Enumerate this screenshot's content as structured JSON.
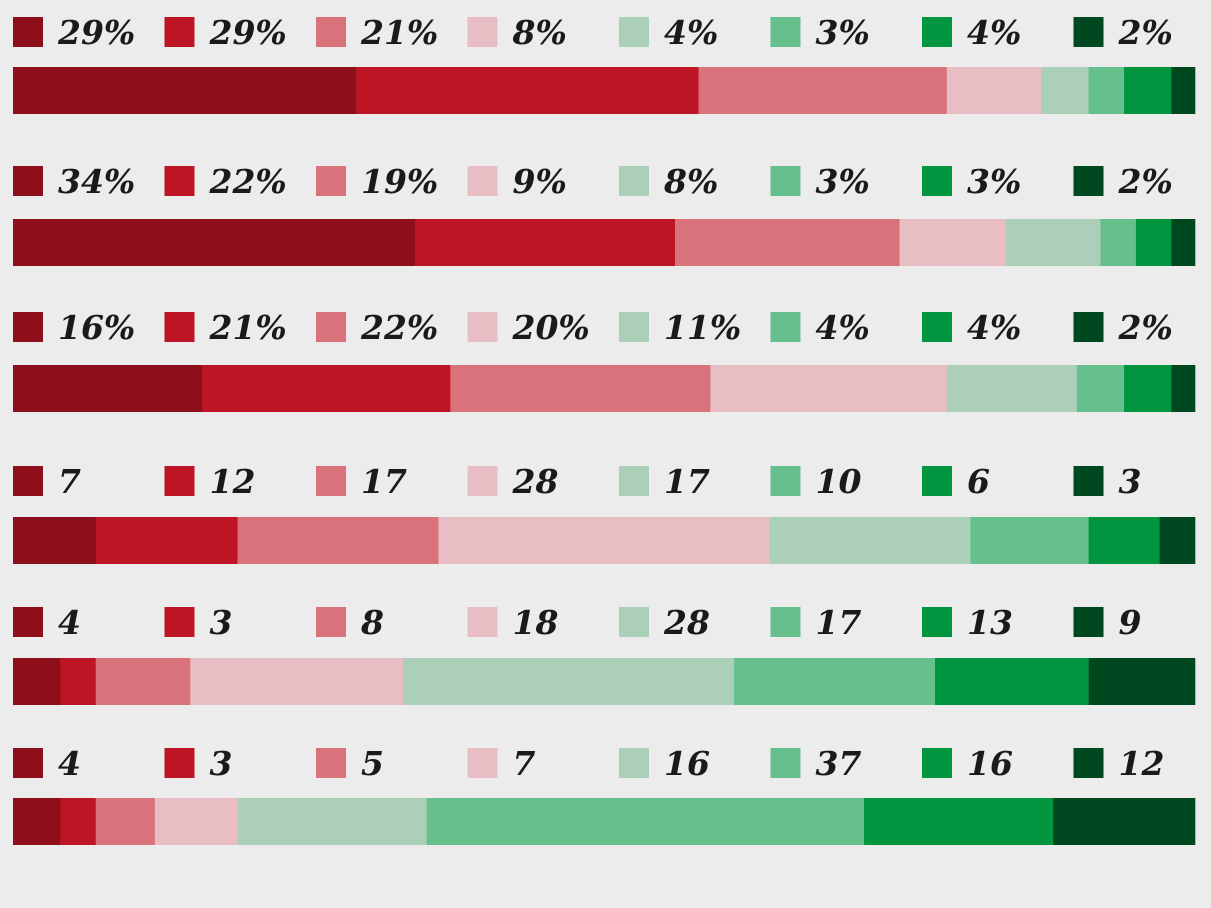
{
  "palette": [
    "#8c0f1b",
    "#bd1523",
    "#d9727a",
    "#e8bdc3",
    "#abcfb9",
    "#66c08e",
    "#00963f",
    "#004920"
  ],
  "chart_data": {
    "type": "bar",
    "orientation": "horizontal",
    "stacked": true,
    "normalized": true,
    "title": "",
    "legend_placement": "above each bar",
    "grid": false,
    "rows": [
      {
        "values": [
          29,
          29,
          21,
          8,
          4,
          3,
          4,
          2
        ],
        "labels": [
          "29%",
          "29%",
          "21%",
          "8%",
          "4%",
          "3%",
          "4%",
          "2%"
        ]
      },
      {
        "values": [
          34,
          22,
          19,
          9,
          8,
          3,
          3,
          2
        ],
        "labels": [
          "34%",
          "22%",
          "19%",
          "9%",
          "8%",
          "3%",
          "3%",
          "2%"
        ]
      },
      {
        "values": [
          16,
          21,
          22,
          20,
          11,
          4,
          4,
          2
        ],
        "labels": [
          "16%",
          "21%",
          "22%",
          "20%",
          "11%",
          "4%",
          "4%",
          "2%"
        ]
      },
      {
        "values": [
          7,
          12,
          17,
          28,
          17,
          10,
          6,
          3
        ],
        "labels": [
          "7",
          "12",
          "17",
          "28",
          "17",
          "10",
          "6",
          "3"
        ]
      },
      {
        "values": [
          4,
          3,
          8,
          18,
          28,
          17,
          13,
          9
        ],
        "labels": [
          "4",
          "3",
          "8",
          "18",
          "28",
          "17",
          "13",
          "9"
        ]
      },
      {
        "values": [
          4,
          3,
          5,
          7,
          16,
          37,
          16,
          12
        ],
        "labels": [
          "4",
          "3",
          "5",
          "7",
          "16",
          "37",
          "16",
          "12"
        ]
      }
    ]
  }
}
